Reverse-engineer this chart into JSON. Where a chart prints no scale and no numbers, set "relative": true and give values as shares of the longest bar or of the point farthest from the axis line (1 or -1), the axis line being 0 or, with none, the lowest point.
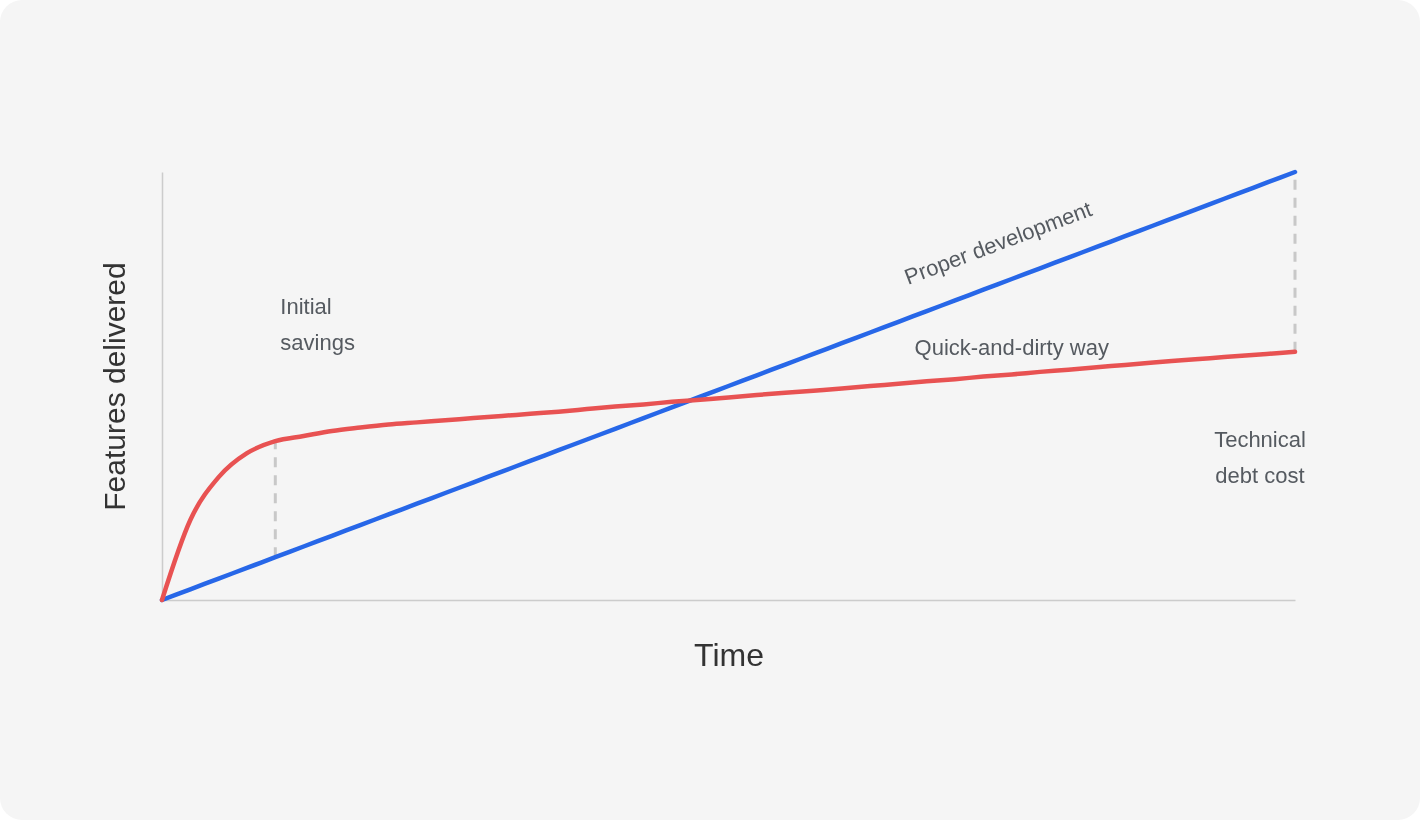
{
  "chart_data": {
    "type": "line",
    "relative": true,
    "xlabel": "Time",
    "ylabel": "Features delivered",
    "tick_labels": false,
    "line_style": "solid",
    "categories": [
      null,
      null,
      null,
      null,
      null,
      null,
      null,
      null,
      null,
      null,
      null,
      null,
      null,
      null,
      null,
      null,
      null,
      null,
      null,
      null,
      null,
      null,
      null,
      null,
      null,
      null,
      null,
      null,
      null,
      null,
      null,
      null,
      null,
      null,
      null,
      null,
      null,
      null,
      null,
      null,
      null
    ],
    "series": [
      {
        "name": "Proper development",
        "color": "#2767e8",
        "values": [
          0,
          0.025,
          0.05,
          0.075,
          0.1,
          0.125,
          0.15,
          0.175,
          0.2,
          0.225,
          0.25,
          0.275,
          0.3,
          0.325,
          0.35,
          0.375,
          0.4,
          0.425,
          0.45,
          0.475,
          0.5,
          0.525,
          0.55,
          0.575,
          0.6,
          0.625,
          0.65,
          0.675,
          0.7,
          0.725,
          0.75,
          0.775,
          0.8,
          0.825,
          0.85,
          0.875,
          0.9,
          0.925,
          0.95,
          0.975,
          1
        ]
      },
      {
        "name": "Quick-and-dirty way",
        "color": "#e85252",
        "values": [
          0,
          0.187,
          0.287,
          0.343,
          0.371,
          0.383,
          0.395,
          0.403,
          0.41,
          0.415,
          0.42,
          0.425,
          0.43,
          0.435,
          0.44,
          0.446,
          0.452,
          0.457,
          0.463,
          0.468,
          0.473,
          0.479,
          0.484,
          0.489,
          0.494,
          0.5,
          0.505,
          0.511,
          0.516,
          0.522,
          0.527,
          0.533,
          0.538,
          0.544,
          0.549,
          0.555,
          0.56,
          0.565,
          0.57,
          0.575,
          0.58
        ]
      }
    ],
    "annotations": [
      "Initial\nsavings",
      "Technical\ndebt cost"
    ]
  }
}
